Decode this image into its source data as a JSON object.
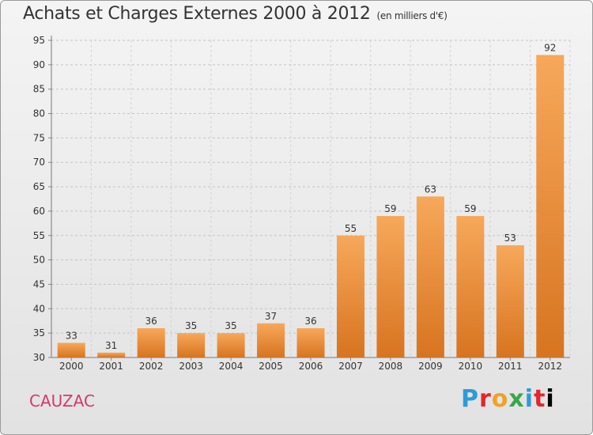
{
  "header": {
    "title": "Achats et Charges Externes 2000 à 2012",
    "subtitle": "(en milliers d'€)"
  },
  "footer": {
    "commune": "CAUZAC",
    "brand_letters": [
      "P",
      "r",
      "o",
      "x",
      "i",
      "t",
      "i"
    ]
  },
  "colors": {
    "bar_light": "#f7a85a",
    "bar_dark": "#d77420",
    "commune": "#d23a6e"
  },
  "chart_data": {
    "type": "bar",
    "title": "Achats et Charges Externes 2000 à 2012",
    "subtitle": "(en milliers d'€)",
    "xlabel": "",
    "ylabel": "",
    "categories": [
      "2000",
      "2001",
      "2002",
      "2003",
      "2004",
      "2005",
      "2006",
      "2007",
      "2008",
      "2009",
      "2010",
      "2011",
      "2012"
    ],
    "values": [
      33,
      31,
      36,
      35,
      35,
      37,
      36,
      55,
      59,
      63,
      59,
      53,
      92
    ],
    "ylim": [
      30,
      95
    ],
    "yticks": [
      30,
      35,
      40,
      45,
      50,
      55,
      60,
      65,
      70,
      75,
      80,
      85,
      90,
      95
    ],
    "grid": true,
    "data_labels": true
  }
}
